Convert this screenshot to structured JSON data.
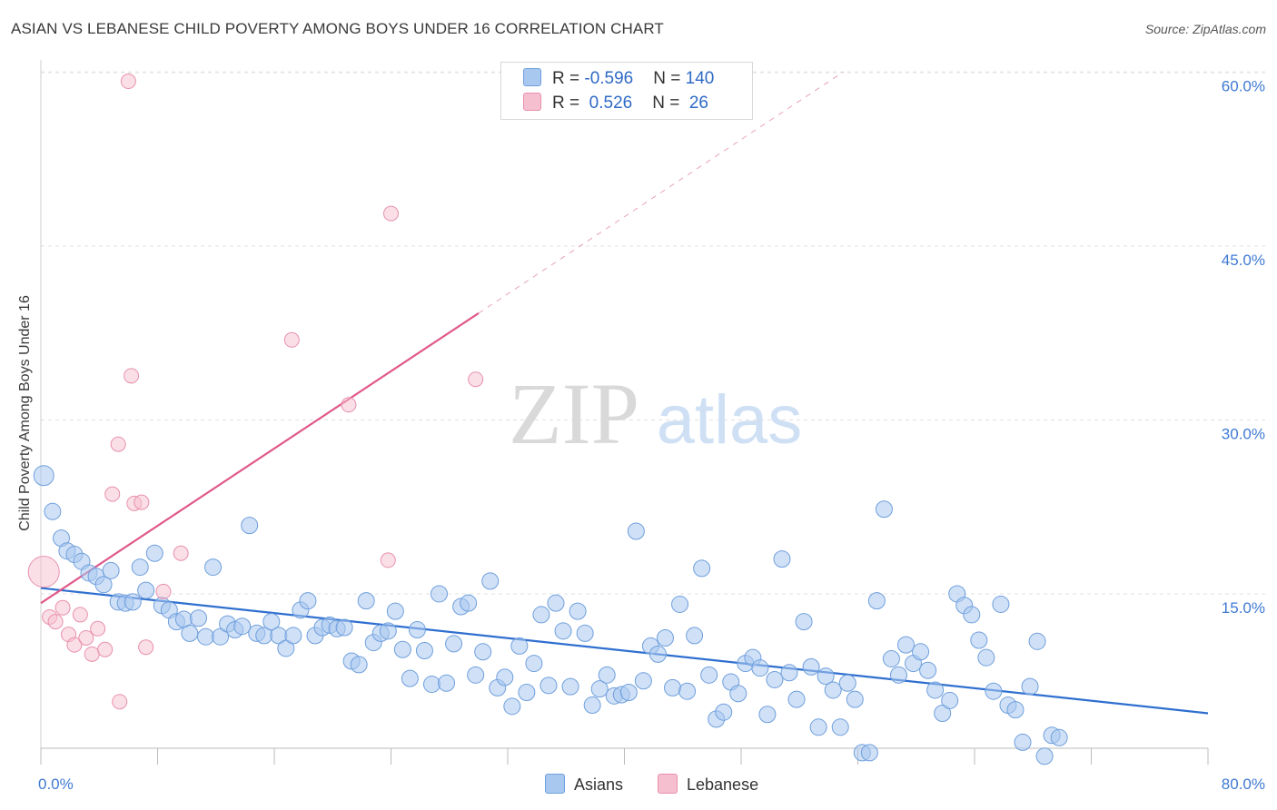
{
  "title": "ASIAN VS LEBANESE CHILD POVERTY AMONG BOYS UNDER 16 CORRELATION CHART",
  "source": "Source: ZipAtlas.com",
  "watermark": {
    "zip": "ZIP",
    "atlas": "atlas"
  },
  "legend": {
    "rows": [
      {
        "r_label": "R = ",
        "r_value": "-0.596",
        "n_label": "N = ",
        "n_value": "140",
        "color": "#a9c8f0",
        "border": "#6f9fdc"
      },
      {
        "r_label": "R = ",
        "r_value": " 0.526",
        "n_label": "N = ",
        "n_value": " 26",
        "color": "#f6bfd0",
        "border": "#e890ad"
      }
    ]
  },
  "bottom_legend": [
    {
      "label": "Asians",
      "color": "#a9c8f0",
      "border": "#6f9fdc"
    },
    {
      "label": "Lebanese",
      "color": "#f6bfd0",
      "border": "#e890ad"
    }
  ],
  "chart_data": {
    "type": "scatter",
    "title": "ASIAN VS LEBANESE CHILD POVERTY AMONG BOYS UNDER 16 CORRELATION CHART",
    "xlabel": "",
    "ylabel": "Child Poverty Among Boys Under 16",
    "xlim": [
      0,
      80
    ],
    "ylim": [
      0,
      62
    ],
    "x_ticks": [
      0,
      80
    ],
    "x_tick_labels": [
      "0.0%",
      "80.0%"
    ],
    "y_ticks": [
      15,
      30,
      45,
      60
    ],
    "y_tick_labels": [
      "15.0%",
      "30.0%",
      "45.0%",
      "60.0%"
    ],
    "grid": true,
    "legend_position": "top-center",
    "series": [
      {
        "name": "Asians",
        "color": "#a9c8f0",
        "stroke": "#6f9fdc",
        "trend": {
          "x": [
            0,
            80
          ],
          "y": [
            15.5,
            4.7
          ],
          "color": "#2f6fcf"
        },
        "points": [
          [
            0.2,
            25.2
          ],
          [
            0.8,
            22.1
          ],
          [
            1.4,
            19.8
          ],
          [
            1.8,
            18.7
          ],
          [
            2.3,
            18.4
          ],
          [
            2.8,
            17.8
          ],
          [
            3.3,
            16.8
          ],
          [
            3.8,
            16.5
          ],
          [
            4.3,
            15.8
          ],
          [
            4.8,
            17.0
          ],
          [
            5.3,
            14.3
          ],
          [
            5.8,
            14.2
          ],
          [
            6.3,
            14.3
          ],
          [
            6.8,
            17.3
          ],
          [
            7.2,
            15.3
          ],
          [
            7.8,
            18.5
          ],
          [
            8.3,
            14.0
          ],
          [
            8.8,
            13.6
          ],
          [
            9.3,
            12.6
          ],
          [
            9.8,
            12.8
          ],
          [
            10.2,
            11.6
          ],
          [
            10.8,
            12.9
          ],
          [
            11.3,
            11.3
          ],
          [
            11.8,
            17.3
          ],
          [
            12.3,
            11.3
          ],
          [
            12.8,
            12.4
          ],
          [
            13.3,
            11.9
          ],
          [
            13.8,
            12.2
          ],
          [
            14.3,
            20.9
          ],
          [
            14.8,
            11.6
          ],
          [
            15.3,
            11.4
          ],
          [
            15.8,
            12.6
          ],
          [
            16.3,
            11.4
          ],
          [
            16.8,
            10.3
          ],
          [
            17.3,
            11.4
          ],
          [
            17.8,
            13.6
          ],
          [
            18.3,
            14.4
          ],
          [
            18.8,
            11.4
          ],
          [
            19.3,
            12.1
          ],
          [
            19.8,
            12.3
          ],
          [
            20.3,
            12.0
          ],
          [
            20.8,
            12.1
          ],
          [
            21.3,
            9.2
          ],
          [
            21.8,
            8.9
          ],
          [
            22.3,
            14.4
          ],
          [
            22.8,
            10.8
          ],
          [
            23.3,
            11.6
          ],
          [
            23.8,
            11.8
          ],
          [
            24.3,
            13.5
          ],
          [
            24.8,
            10.2
          ],
          [
            25.3,
            7.7
          ],
          [
            25.8,
            11.9
          ],
          [
            26.3,
            10.1
          ],
          [
            26.8,
            7.2
          ],
          [
            27.3,
            15.0
          ],
          [
            27.8,
            7.3
          ],
          [
            28.3,
            10.7
          ],
          [
            28.8,
            13.9
          ],
          [
            29.3,
            14.2
          ],
          [
            29.8,
            8.0
          ],
          [
            30.3,
            10.0
          ],
          [
            30.8,
            16.1
          ],
          [
            31.3,
            6.9
          ],
          [
            31.8,
            7.8
          ],
          [
            32.3,
            5.3
          ],
          [
            32.8,
            10.5
          ],
          [
            33.3,
            6.5
          ],
          [
            33.8,
            9.0
          ],
          [
            34.3,
            13.2
          ],
          [
            34.8,
            7.1
          ],
          [
            35.3,
            14.2
          ],
          [
            35.8,
            11.8
          ],
          [
            36.3,
            7.0
          ],
          [
            36.8,
            13.5
          ],
          [
            37.3,
            11.6
          ],
          [
            37.8,
            5.4
          ],
          [
            38.3,
            6.8
          ],
          [
            38.8,
            8.0
          ],
          [
            39.3,
            6.2
          ],
          [
            39.8,
            6.3
          ],
          [
            40.3,
            6.5
          ],
          [
            40.8,
            20.4
          ],
          [
            41.3,
            7.5
          ],
          [
            41.8,
            10.5
          ],
          [
            42.3,
            9.8
          ],
          [
            42.8,
            11.2
          ],
          [
            43.3,
            6.9
          ],
          [
            43.8,
            14.1
          ],
          [
            44.3,
            6.6
          ],
          [
            44.8,
            11.4
          ],
          [
            45.3,
            17.2
          ],
          [
            45.8,
            8.0
          ],
          [
            46.3,
            4.2
          ],
          [
            46.8,
            4.8
          ],
          [
            47.3,
            7.4
          ],
          [
            47.8,
            6.4
          ],
          [
            48.3,
            9.0
          ],
          [
            48.8,
            9.5
          ],
          [
            49.3,
            8.6
          ],
          [
            49.8,
            4.6
          ],
          [
            50.3,
            7.6
          ],
          [
            50.8,
            18.0
          ],
          [
            51.3,
            8.2
          ],
          [
            51.8,
            5.9
          ],
          [
            52.3,
            12.6
          ],
          [
            52.8,
            8.7
          ],
          [
            53.3,
            3.5
          ],
          [
            53.8,
            7.9
          ],
          [
            54.3,
            6.7
          ],
          [
            54.8,
            3.5
          ],
          [
            55.3,
            7.3
          ],
          [
            55.8,
            5.9
          ],
          [
            56.3,
            1.3
          ],
          [
            56.8,
            1.3
          ],
          [
            57.3,
            14.4
          ],
          [
            57.8,
            22.3
          ],
          [
            58.3,
            9.4
          ],
          [
            58.8,
            8.0
          ],
          [
            59.3,
            10.6
          ],
          [
            59.8,
            9.0
          ],
          [
            60.3,
            10.0
          ],
          [
            60.8,
            8.4
          ],
          [
            61.3,
            6.7
          ],
          [
            61.8,
            4.7
          ],
          [
            62.3,
            5.8
          ],
          [
            62.8,
            15.0
          ],
          [
            63.3,
            14.0
          ],
          [
            63.8,
            13.2
          ],
          [
            64.3,
            11.0
          ],
          [
            64.8,
            9.5
          ],
          [
            65.3,
            6.6
          ],
          [
            65.8,
            14.1
          ],
          [
            66.3,
            5.4
          ],
          [
            66.8,
            5.0
          ],
          [
            67.3,
            2.2
          ],
          [
            67.8,
            7.0
          ],
          [
            68.3,
            10.9
          ],
          [
            68.8,
            1.0
          ],
          [
            69.3,
            2.8
          ],
          [
            69.8,
            2.6
          ]
        ]
      },
      {
        "name": "Lebanese",
        "color": "#f6bfd0",
        "stroke": "#e890ad",
        "trend": {
          "x": [
            0,
            30
          ],
          "y": [
            14.2,
            39.2
          ],
          "dash_to": [
            55,
            60
          ],
          "color": "#e0588a"
        },
        "points": [
          [
            0.2,
            16.9
          ],
          [
            0.6,
            13.0
          ],
          [
            1.0,
            12.6
          ],
          [
            1.5,
            13.8
          ],
          [
            1.9,
            11.5
          ],
          [
            2.3,
            10.6
          ],
          [
            2.7,
            13.2
          ],
          [
            3.1,
            11.2
          ],
          [
            3.5,
            9.8
          ],
          [
            3.9,
            12.0
          ],
          [
            4.4,
            10.2
          ],
          [
            4.9,
            23.6
          ],
          [
            5.3,
            27.9
          ],
          [
            5.4,
            5.7
          ],
          [
            6.0,
            59.2
          ],
          [
            6.2,
            33.8
          ],
          [
            6.4,
            22.8
          ],
          [
            6.9,
            22.9
          ],
          [
            7.2,
            10.4
          ],
          [
            8.4,
            15.2
          ],
          [
            9.6,
            18.5
          ],
          [
            17.2,
            36.9
          ],
          [
            21.1,
            31.3
          ],
          [
            23.8,
            17.9
          ],
          [
            24.0,
            47.8
          ],
          [
            29.8,
            33.5
          ]
        ]
      }
    ]
  }
}
